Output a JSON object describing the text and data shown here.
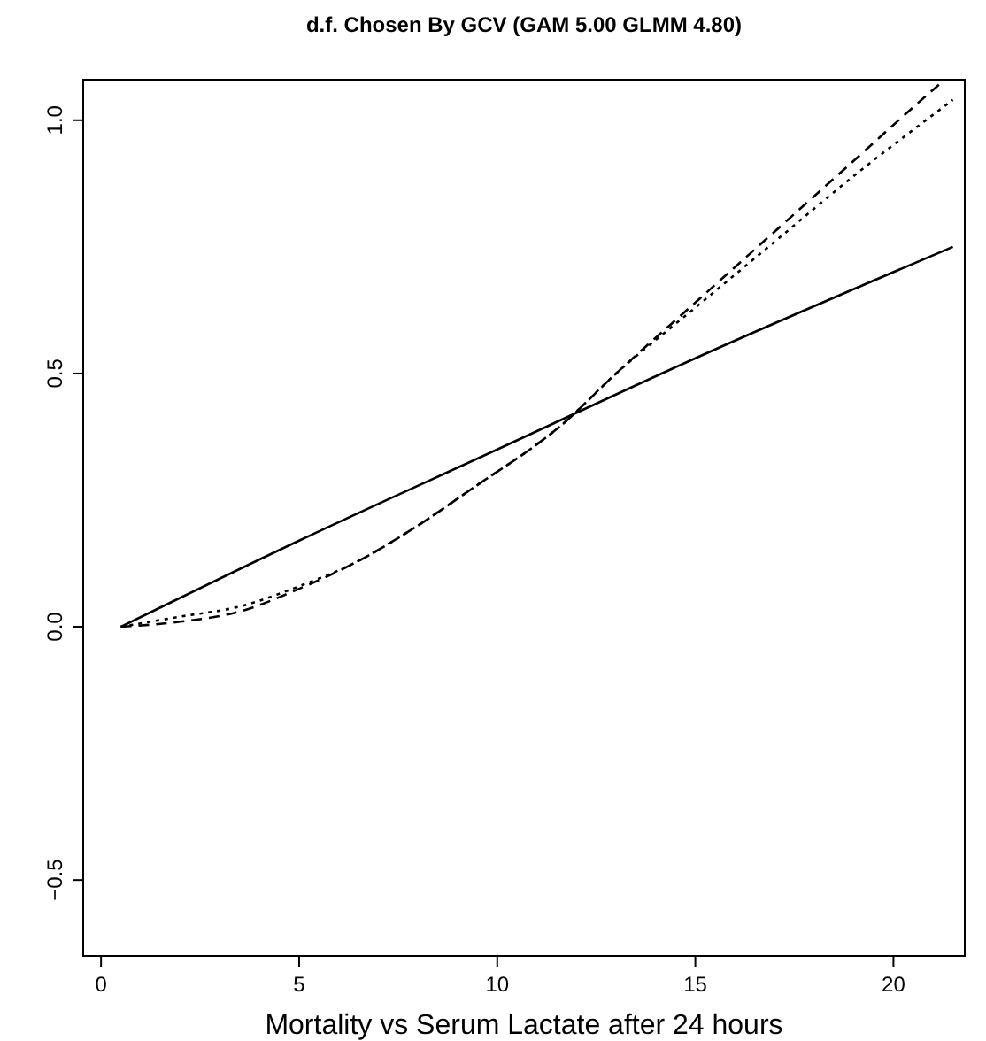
{
  "chart_data": {
    "type": "line",
    "title": "d.f. Chosen By GCV (GAM 5.00 GLMM 4.80)",
    "xlabel": "Mortality vs Serum Lactate after 24 hours",
    "xlim": [
      -0.45,
      21.8
    ],
    "ylim": [
      -0.65,
      1.08
    ],
    "xticks": [
      0,
      5,
      10,
      15,
      20
    ],
    "yticks": [
      {
        "value": -0.5,
        "label": "−0.5"
      },
      {
        "value": 0,
        "label": "0.0"
      },
      {
        "value": 0.5,
        "label": "0.5"
      },
      {
        "value": 1,
        "label": "1.0"
      }
    ],
    "series": [
      {
        "color": "#000000",
        "line_style": "solid",
        "x": [
          0.5,
          5,
          10,
          15,
          21.5
        ],
        "values": [
          0,
          0.17,
          0.35,
          0.53,
          0.75
        ]
      },
      {
        "color": "#000000",
        "line_style": "dashed",
        "x": [
          0.5,
          2,
          3.5,
          5,
          6.5,
          8,
          9.5,
          11,
          11.5,
          13,
          15,
          17,
          19,
          21,
          21.3
        ],
        "values": [
          0,
          0.01,
          0.03,
          0.075,
          0.13,
          0.2,
          0.28,
          0.36,
          0.39,
          0.5,
          0.64,
          0.78,
          0.92,
          1.06,
          1.08
        ]
      },
      {
        "color": "#000000",
        "line_style": "dotted",
        "x": [
          0.5,
          2,
          3.5,
          5,
          6.5,
          8,
          9.5,
          11,
          11.5,
          13,
          15,
          17,
          19,
          21.5
        ],
        "values": [
          0,
          0.02,
          0.04,
          0.08,
          0.13,
          0.2,
          0.28,
          0.36,
          0.39,
          0.5,
          0.63,
          0.76,
          0.89,
          1.04
        ]
      }
    ]
  }
}
